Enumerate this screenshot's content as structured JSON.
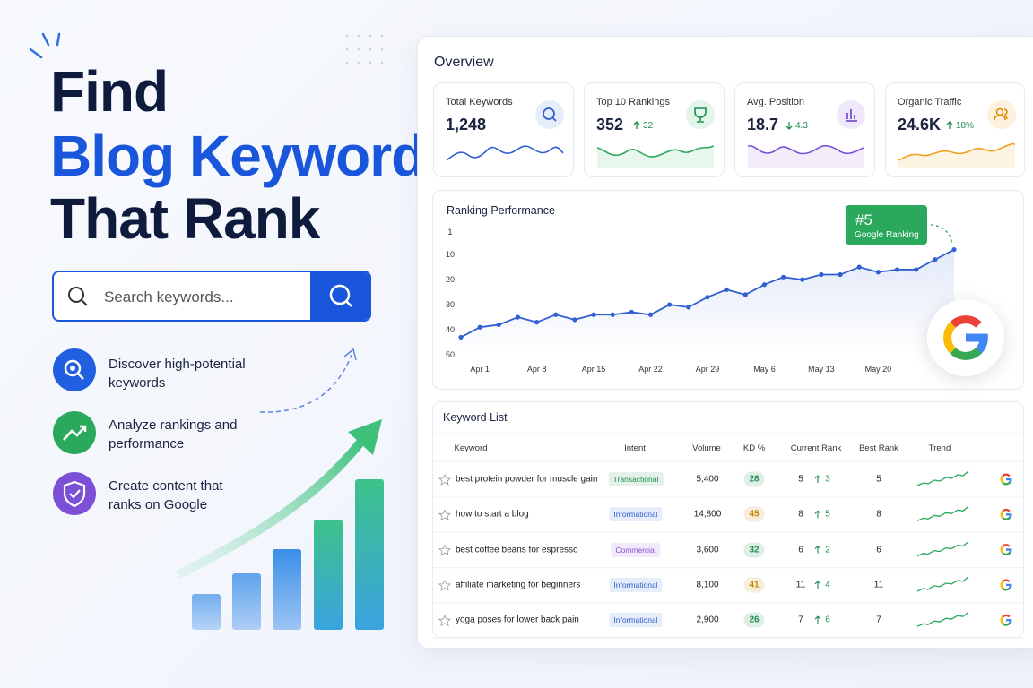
{
  "hero": {
    "title": [
      "Find",
      "Blog Keywords",
      "That Rank"
    ],
    "search_placeholder": "Search keywords...",
    "features": [
      "Discover high-potential keywords",
      "Analyze rankings and performance",
      "Create content that ranks on Google"
    ]
  },
  "overview": {
    "title": "Overview",
    "cards": [
      {
        "label": "Total Keywords",
        "value": "1,248"
      },
      {
        "label": "Top 10 Rankings",
        "value": "352",
        "change": "32"
      },
      {
        "label": "Avg. Position",
        "value": "18.7",
        "change": "4.3"
      },
      {
        "label": "Organic Traffic",
        "value": "24.6K",
        "change": "18%"
      }
    ]
  },
  "chart_data": {
    "type": "line",
    "title": "Ranking Performance",
    "categories": [
      null,
      "Apr 1",
      null,
      null,
      "Apr 8",
      null,
      null,
      "Apr 15",
      null,
      null,
      "Apr 22",
      null,
      null,
      "Apr 29",
      null,
      null,
      "May 6",
      null,
      null,
      "May 13",
      null,
      null,
      "May 20",
      null,
      null,
      null,
      null
    ],
    "values": [
      43,
      39,
      38,
      35,
      37,
      34,
      36,
      34,
      34,
      33,
      34,
      30,
      31,
      27,
      24,
      26,
      22,
      19,
      20,
      18,
      18,
      15,
      17,
      16,
      16,
      12,
      8
    ],
    "color": "#2f5fd0",
    "ylim": [
      1,
      50
    ],
    "yticks": [
      1,
      10,
      20,
      30,
      40,
      50
    ],
    "inverted": true,
    "annotation": {
      "label": "#5",
      "text": "Google Ranking"
    }
  },
  "keyword_list": {
    "title": "Keyword List",
    "columns": [
      "Keyword",
      "Intent",
      "Volume",
      "KD %",
      "Current Rank",
      "Best Rank",
      "Trend"
    ],
    "rows": [
      {
        "keyword": "best protein powder for muscle gain",
        "intent": "Transactional",
        "intent_color": "#1e8e4e",
        "volume": "5,400",
        "kd": "28",
        "kd_color": "#1e8e4e",
        "rank": "5",
        "change": "3",
        "best": "5"
      },
      {
        "keyword": "how to start a blog",
        "intent": "Informational",
        "intent_color": "#2f5fd0",
        "volume": "14,800",
        "kd": "45",
        "kd_color": "#c28a00",
        "rank": "8",
        "change": "5",
        "best": "8"
      },
      {
        "keyword": "best coffee beans for espresso",
        "intent": "Commercial",
        "intent_color": "#8a4fd6",
        "volume": "3,600",
        "kd": "32",
        "kd_color": "#1e8e4e",
        "rank": "6",
        "change": "2",
        "best": "6"
      },
      {
        "keyword": "affiliate marketing for beginners",
        "intent": "Informational",
        "intent_color": "#2f5fd0",
        "volume": "8,100",
        "kd": "41",
        "kd_color": "#c28a00",
        "rank": "11",
        "change": "4",
        "best": "11"
      },
      {
        "keyword": "yoga poses for lower back pain",
        "intent": "Informational",
        "intent_color": "#2f5fd0",
        "volume": "2,900",
        "kd": "26",
        "kd_color": "#1e8e4e",
        "rank": "7",
        "change": "6",
        "best": "7"
      }
    ]
  }
}
